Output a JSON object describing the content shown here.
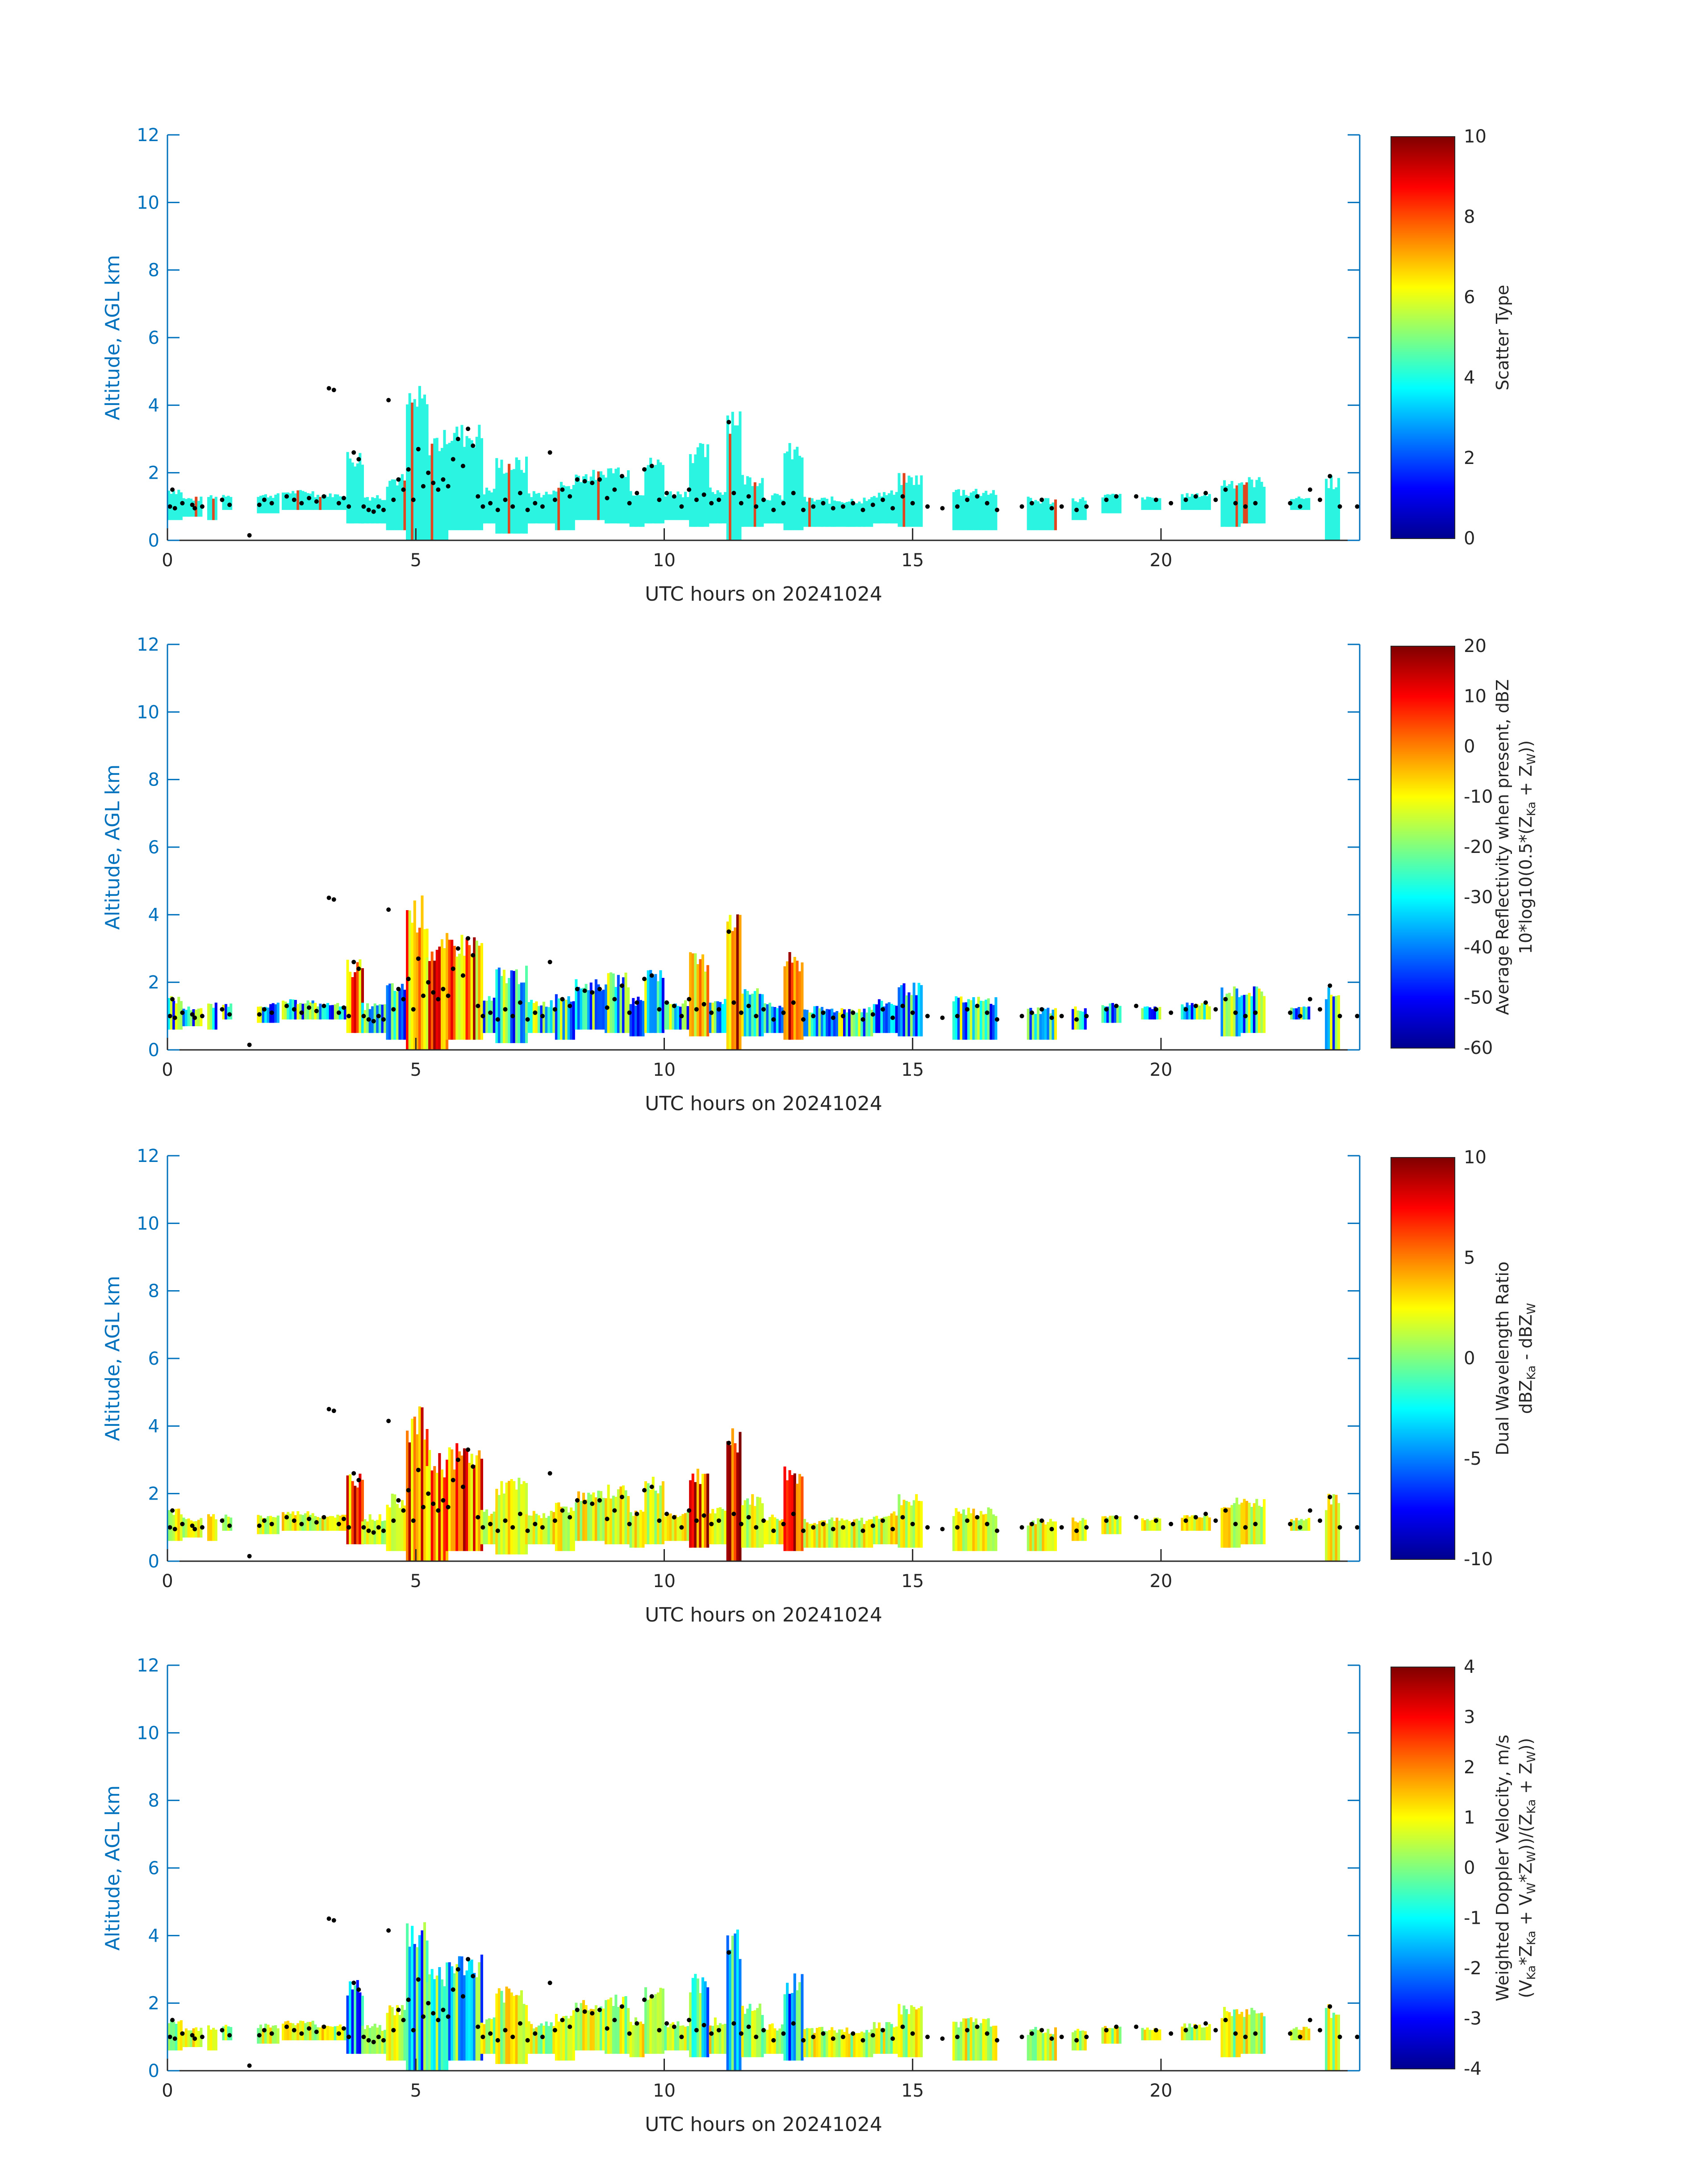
{
  "chart_data": [
    {
      "type": "heatmap",
      "xlabel": "UTC hours on 20241024",
      "ylabel": "Altitude, AGL km",
      "xlim": [
        0,
        24
      ],
      "ylim": [
        0,
        12
      ],
      "xticks": [
        "0",
        "5",
        "10",
        "15",
        "20"
      ],
      "yticks": [
        "0",
        "2",
        "4",
        "6",
        "8",
        "10",
        "12"
      ],
      "colorbar": {
        "lines": [
          [
            "Scatter Type"
          ]
        ],
        "limits": [
          0,
          10
        ],
        "ticks": [
          "0",
          "2",
          "4",
          "6",
          "8",
          "10"
        ],
        "colormap": "jet"
      }
    },
    {
      "type": "heatmap",
      "xlabel": "UTC hours on 20241024",
      "ylabel": "Altitude, AGL km",
      "xlim": [
        0,
        24
      ],
      "ylim": [
        0,
        12
      ],
      "xticks": [
        "0",
        "5",
        "10",
        "15",
        "20"
      ],
      "yticks": [
        "0",
        "2",
        "4",
        "6",
        "8",
        "10",
        "12"
      ],
      "colorbar": {
        "lines": [
          [
            "Average Reflectivity when present, dBZ"
          ],
          [
            "10*log10(0.5*(Z",
            "Ka",
            " + Z",
            "W",
            "))"
          ]
        ],
        "limits": [
          -60,
          20
        ],
        "ticks": [
          "-60",
          "-50",
          "-40",
          "-30",
          "-20",
          "-10",
          "0",
          "10",
          "20"
        ],
        "colormap": "jet"
      }
    },
    {
      "type": "heatmap",
      "xlabel": "UTC hours on 20241024",
      "ylabel": "Altitude, AGL km",
      "xlim": [
        0,
        24
      ],
      "ylim": [
        0,
        12
      ],
      "xticks": [
        "0",
        "5",
        "10",
        "15",
        "20"
      ],
      "yticks": [
        "0",
        "2",
        "4",
        "6",
        "8",
        "10",
        "12"
      ],
      "colorbar": {
        "lines": [
          [
            "Dual Wavelength Ratio"
          ],
          [
            "dBZ",
            "Ka",
            " - dBZ",
            "W",
            ""
          ]
        ],
        "limits": [
          -10,
          10
        ],
        "ticks": [
          "-10",
          "-5",
          "0",
          "5",
          "10"
        ],
        "colormap": "jet"
      }
    },
    {
      "type": "heatmap",
      "xlabel": "UTC hours on 20241024",
      "ylabel": "Altitude, AGL km",
      "xlim": [
        0,
        24
      ],
      "ylim": [
        0,
        12
      ],
      "xticks": [
        "0",
        "5",
        "10",
        "15",
        "20"
      ],
      "yticks": [
        "0",
        "2",
        "4",
        "6",
        "8",
        "10",
        "12"
      ],
      "colorbar": {
        "lines": [
          [
            "Weighted Doppler Velocity, m/s"
          ],
          [
            "(V",
            "Ka",
            "*Z",
            "Ka",
            " + V",
            "W",
            "*Z",
            "W",
            "))/(Z",
            "Ka",
            " + Z",
            "W",
            "))"
          ]
        ],
        "limits": [
          -4,
          4
        ],
        "ticks": [
          "-4",
          "-3",
          "-2",
          "-1",
          "0",
          "1",
          "2",
          "3",
          "4"
        ],
        "colormap": "jet"
      }
    }
  ],
  "cloud_base_points": [
    [
      0.05,
      1.0
    ],
    [
      0.1,
      1.5
    ],
    [
      0.15,
      0.95
    ],
    [
      0.3,
      1.1
    ],
    [
      0.5,
      1.05
    ],
    [
      0.55,
      0.95
    ],
    [
      0.7,
      1.0
    ],
    [
      1.1,
      1.2
    ],
    [
      1.25,
      1.05
    ],
    [
      1.65,
      0.15
    ],
    [
      1.85,
      1.05
    ],
    [
      1.95,
      1.2
    ],
    [
      2.1,
      1.1
    ],
    [
      2.4,
      1.3
    ],
    [
      2.55,
      1.2
    ],
    [
      2.7,
      1.1
    ],
    [
      2.85,
      1.25
    ],
    [
      3.0,
      1.15
    ],
    [
      3.15,
      1.3
    ],
    [
      3.25,
      4.5
    ],
    [
      3.35,
      4.45
    ],
    [
      3.45,
      1.1
    ],
    [
      3.55,
      1.25
    ],
    [
      3.65,
      1.0
    ],
    [
      3.75,
      2.6
    ],
    [
      3.85,
      2.4
    ],
    [
      3.95,
      1.0
    ],
    [
      4.05,
      0.9
    ],
    [
      4.15,
      0.85
    ],
    [
      4.25,
      1.0
    ],
    [
      4.35,
      0.9
    ],
    [
      4.45,
      4.15
    ],
    [
      4.55,
      1.2
    ],
    [
      4.65,
      1.8
    ],
    [
      4.75,
      1.5
    ],
    [
      4.85,
      2.1
    ],
    [
      4.95,
      1.2
    ],
    [
      5.05,
      2.7
    ],
    [
      5.15,
      1.6
    ],
    [
      5.25,
      2.0
    ],
    [
      5.35,
      1.7
    ],
    [
      5.45,
      1.5
    ],
    [
      5.55,
      1.8
    ],
    [
      5.65,
      1.6
    ],
    [
      5.75,
      2.4
    ],
    [
      5.85,
      3.0
    ],
    [
      5.95,
      2.2
    ],
    [
      6.05,
      3.3
    ],
    [
      6.15,
      2.8
    ],
    [
      6.25,
      1.3
    ],
    [
      6.35,
      1.0
    ],
    [
      6.5,
      1.1
    ],
    [
      6.65,
      0.9
    ],
    [
      6.8,
      1.2
    ],
    [
      6.95,
      1.0
    ],
    [
      7.1,
      1.4
    ],
    [
      7.25,
      0.9
    ],
    [
      7.4,
      1.1
    ],
    [
      7.55,
      1.0
    ],
    [
      7.7,
      2.6
    ],
    [
      7.8,
      1.2
    ],
    [
      7.95,
      1.5
    ],
    [
      8.1,
      1.3
    ],
    [
      8.25,
      1.8
    ],
    [
      8.4,
      1.75
    ],
    [
      8.55,
      1.7
    ],
    [
      8.7,
      1.8
    ],
    [
      8.85,
      1.25
    ],
    [
      9.0,
      1.5
    ],
    [
      9.15,
      1.9
    ],
    [
      9.3,
      1.1
    ],
    [
      9.45,
      1.4
    ],
    [
      9.6,
      2.1
    ],
    [
      9.75,
      2.2
    ],
    [
      9.9,
      1.2
    ],
    [
      10.05,
      1.4
    ],
    [
      10.2,
      1.3
    ],
    [
      10.35,
      1.0
    ],
    [
      10.5,
      1.5
    ],
    [
      10.65,
      1.2
    ],
    [
      10.8,
      1.35
    ],
    [
      10.95,
      1.1
    ],
    [
      11.1,
      1.2
    ],
    [
      11.3,
      3.5
    ],
    [
      11.4,
      1.4
    ],
    [
      11.55,
      1.1
    ],
    [
      11.7,
      1.3
    ],
    [
      11.85,
      1.0
    ],
    [
      12.0,
      1.2
    ],
    [
      12.2,
      0.9
    ],
    [
      12.4,
      1.1
    ],
    [
      12.6,
      1.4
    ],
    [
      12.8,
      0.9
    ],
    [
      13.0,
      1.0
    ],
    [
      13.2,
      1.1
    ],
    [
      13.4,
      0.95
    ],
    [
      13.6,
      1.0
    ],
    [
      13.8,
      1.1
    ],
    [
      14.0,
      0.9
    ],
    [
      14.2,
      1.05
    ],
    [
      14.4,
      1.2
    ],
    [
      14.6,
      0.95
    ],
    [
      14.8,
      1.3
    ],
    [
      15.0,
      1.1
    ],
    [
      15.3,
      1.0
    ],
    [
      15.6,
      0.95
    ],
    [
      15.9,
      1.0
    ],
    [
      16.1,
      1.2
    ],
    [
      16.3,
      1.3
    ],
    [
      16.5,
      1.1
    ],
    [
      16.7,
      0.9
    ],
    [
      17.2,
      1.0
    ],
    [
      17.4,
      1.1
    ],
    [
      17.6,
      1.2
    ],
    [
      17.8,
      0.95
    ],
    [
      18.0,
      1.0
    ],
    [
      18.3,
      0.9
    ],
    [
      18.5,
      1.0
    ],
    [
      18.9,
      1.2
    ],
    [
      19.1,
      1.3
    ],
    [
      19.5,
      1.3
    ],
    [
      19.9,
      1.2
    ],
    [
      20.2,
      1.1
    ],
    [
      20.5,
      1.2
    ],
    [
      20.7,
      1.3
    ],
    [
      20.9,
      1.4
    ],
    [
      21.1,
      1.2
    ],
    [
      21.3,
      1.5
    ],
    [
      21.5,
      1.1
    ],
    [
      21.7,
      1.0
    ],
    [
      21.9,
      1.1
    ],
    [
      22.6,
      1.1
    ],
    [
      22.8,
      1.0
    ],
    [
      23.0,
      1.5
    ],
    [
      23.2,
      1.2
    ],
    [
      23.4,
      1.9
    ],
    [
      23.6,
      1.0
    ],
    [
      23.95,
      1.0
    ]
  ],
  "echo_columns": [
    [
      0.0,
      0.3,
      0.6,
      1.6
    ],
    [
      0.3,
      0.7,
      0.7,
      1.3
    ],
    [
      0.8,
      1.0,
      0.6,
      1.4
    ],
    [
      1.1,
      1.3,
      0.9,
      1.4
    ],
    [
      1.8,
      2.2,
      0.8,
      1.4
    ],
    [
      2.3,
      2.9,
      0.9,
      1.5
    ],
    [
      2.9,
      3.6,
      0.9,
      1.4
    ],
    [
      3.6,
      3.9,
      0.5,
      2.7
    ],
    [
      3.9,
      4.4,
      0.5,
      1.4
    ],
    [
      4.4,
      4.8,
      0.3,
      2.0
    ],
    [
      4.8,
      5.2,
      0.0,
      4.6
    ],
    [
      5.2,
      5.6,
      0.0,
      3.3
    ],
    [
      5.6,
      6.3,
      0.3,
      3.5
    ],
    [
      6.3,
      6.6,
      0.5,
      1.6
    ],
    [
      6.6,
      7.2,
      0.2,
      2.5
    ],
    [
      7.2,
      7.8,
      0.5,
      1.5
    ],
    [
      7.8,
      8.2,
      0.3,
      1.8
    ],
    [
      8.2,
      8.8,
      0.6,
      2.1
    ],
    [
      8.8,
      9.3,
      0.5,
      2.3
    ],
    [
      9.3,
      9.6,
      0.4,
      1.6
    ],
    [
      9.6,
      10.0,
      0.5,
      2.5
    ],
    [
      10.0,
      10.5,
      0.6,
      1.5
    ],
    [
      10.5,
      10.9,
      0.4,
      2.9
    ],
    [
      10.9,
      11.25,
      0.5,
      1.6
    ],
    [
      11.25,
      11.55,
      0.0,
      4.2
    ],
    [
      11.55,
      12.0,
      0.4,
      2.0
    ],
    [
      12.0,
      12.4,
      0.5,
      1.4
    ],
    [
      12.4,
      12.8,
      0.3,
      2.9
    ],
    [
      12.8,
      13.5,
      0.4,
      1.3
    ],
    [
      13.5,
      14.2,
      0.4,
      1.3
    ],
    [
      14.2,
      14.7,
      0.5,
      1.5
    ],
    [
      14.7,
      15.2,
      0.4,
      2.0
    ],
    [
      15.8,
      16.7,
      0.3,
      1.6
    ],
    [
      17.3,
      17.9,
      0.3,
      1.3
    ],
    [
      18.2,
      18.5,
      0.6,
      1.3
    ],
    [
      18.8,
      19.2,
      0.8,
      1.4
    ],
    [
      19.6,
      20.0,
      0.9,
      1.3
    ],
    [
      20.4,
      21.0,
      0.9,
      1.4
    ],
    [
      21.2,
      21.6,
      0.4,
      1.9
    ],
    [
      21.6,
      22.1,
      0.5,
      1.9
    ],
    [
      22.6,
      23.0,
      0.9,
      1.3
    ],
    [
      23.3,
      23.6,
      0.0,
      2.0
    ]
  ]
}
